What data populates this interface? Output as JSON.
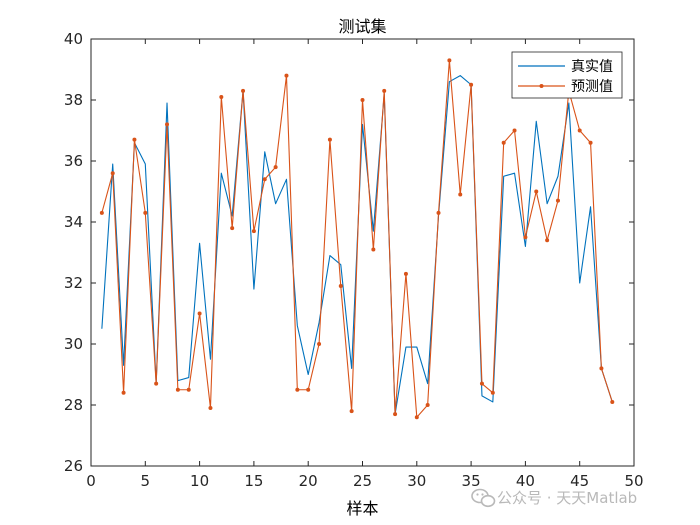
{
  "chart_data": {
    "type": "line",
    "title": "测试集",
    "xlabel": "样本",
    "ylabel": "",
    "xlim": [
      0,
      50
    ],
    "ylim": [
      26,
      40
    ],
    "xticks": [
      0,
      5,
      10,
      15,
      20,
      25,
      30,
      35,
      40,
      45,
      50
    ],
    "yticks": [
      26,
      28,
      30,
      32,
      34,
      36,
      38,
      40
    ],
    "grid": false,
    "legend_position": "top-right",
    "x": [
      1,
      2,
      3,
      4,
      5,
      6,
      7,
      8,
      9,
      10,
      11,
      12,
      13,
      14,
      15,
      16,
      17,
      18,
      19,
      20,
      21,
      22,
      23,
      24,
      25,
      26,
      27,
      28,
      29,
      30,
      31,
      32,
      33,
      34,
      35,
      36,
      37,
      38,
      39,
      40,
      41,
      42,
      43,
      44,
      45,
      46,
      47,
      48
    ],
    "series": [
      {
        "name": "真实值",
        "color": "#0072BD",
        "marker": "none",
        "values": [
          30.5,
          35.9,
          29.3,
          36.6,
          35.9,
          28.7,
          37.9,
          28.8,
          28.9,
          33.3,
          29.5,
          35.6,
          34.2,
          38.3,
          31.8,
          36.3,
          34.6,
          35.4,
          30.6,
          29.0,
          30.7,
          32.9,
          32.6,
          29.2,
          37.2,
          33.7,
          38.2,
          27.7,
          29.9,
          29.9,
          28.7,
          34.2,
          38.6,
          38.8,
          38.5,
          28.3,
          28.1,
          35.5,
          35.6,
          33.2,
          37.3,
          34.6,
          35.5,
          37.9,
          32.0,
          34.5,
          29.2,
          28.1
        ]
      },
      {
        "name": "预测值",
        "color": "#D95319",
        "marker": "dot",
        "values": [
          34.3,
          35.6,
          28.4,
          36.7,
          34.3,
          28.7,
          37.2,
          28.5,
          28.5,
          31.0,
          27.9,
          38.1,
          33.8,
          38.3,
          33.7,
          35.4,
          35.8,
          38.8,
          28.5,
          28.5,
          30.0,
          36.7,
          31.9,
          27.8,
          38.0,
          33.1,
          38.3,
          27.7,
          32.3,
          27.6,
          28.0,
          34.3,
          39.3,
          34.9,
          38.5,
          28.7,
          28.4,
          36.6,
          37.0,
          33.5,
          35.0,
          33.4,
          34.7,
          38.3,
          37.0,
          36.6,
          29.2,
          28.1
        ]
      }
    ]
  },
  "watermark": {
    "icon": "wechat-icon",
    "text": "公众号 · 天天Matlab"
  }
}
